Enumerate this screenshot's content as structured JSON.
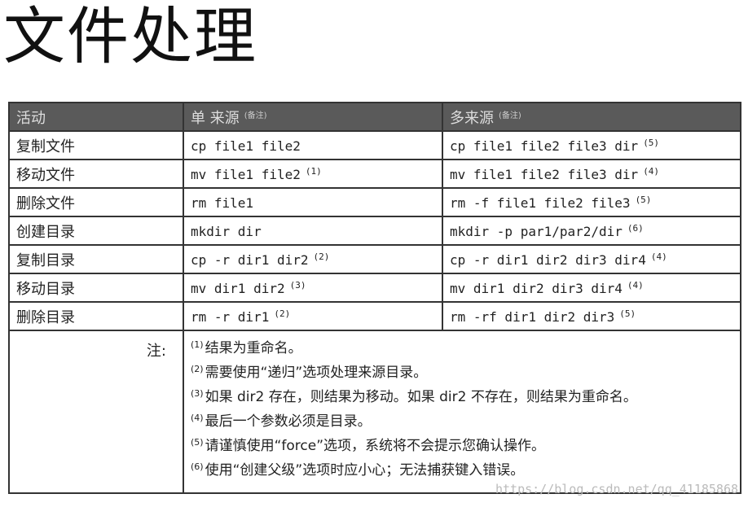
{
  "title": "文件处理",
  "header": {
    "activity": "活动",
    "single": "单  来源",
    "single_note": "(备注)",
    "multi": "多来源",
    "multi_note": "(备注)"
  },
  "rows": [
    {
      "activity": "复制文件",
      "single": "cp file1 file2",
      "single_note": "",
      "multi": "cp file1 file2 file3 dir",
      "multi_note": "(5)"
    },
    {
      "activity": "移动文件",
      "single": "mv file1 file2",
      "single_note": "(1)",
      "multi": "mv file1 file2 file3 dir",
      "multi_note": "(4)"
    },
    {
      "activity": "删除文件",
      "single": "rm file1",
      "single_note": "",
      "multi": "rm -f file1 file2 file3",
      "multi_note": "(5)"
    },
    {
      "activity": "创建目录",
      "single": "mkdir dir",
      "single_note": "",
      "multi": "mkdir -p par1/par2/dir",
      "multi_note": "(6)"
    },
    {
      "activity": "复制目录",
      "single": "cp -r dir1 dir2",
      "single_note": "(2)",
      "multi": "cp -r dir1 dir2 dir3 dir4",
      "multi_note": "(4)"
    },
    {
      "activity": "移动目录",
      "single": "mv dir1 dir2",
      "single_note": "(3)",
      "multi": "mv dir1 dir2 dir3 dir4",
      "multi_note": "(4)"
    },
    {
      "activity": "删除目录",
      "single": "rm -r dir1",
      "single_note": "(2)",
      "multi": "rm -rf dir1 dir2 dir3",
      "multi_note": "(5)"
    }
  ],
  "notes_label": "注:",
  "notes": [
    {
      "n": "(1)",
      "text": "结果为重命名。"
    },
    {
      "n": "(2)",
      "text": "需要使用“递归”选项处理来源目录。"
    },
    {
      "n": "(3)",
      "text": "如果 dir2 存在，则结果为移动。如果 dir2 不存在，则结果为重命名。"
    },
    {
      "n": "(4)",
      "text": "最后一个参数必须是目录。"
    },
    {
      "n": "(5)",
      "text": "请谨慎使用“force”选项，系统将不会提示您确认操作。"
    },
    {
      "n": "(6)",
      "text": "使用“创建父级”选项时应小心；无法捕获键入错误。"
    }
  ],
  "watermark": "https://blog.csdn.net/qq_41185868"
}
